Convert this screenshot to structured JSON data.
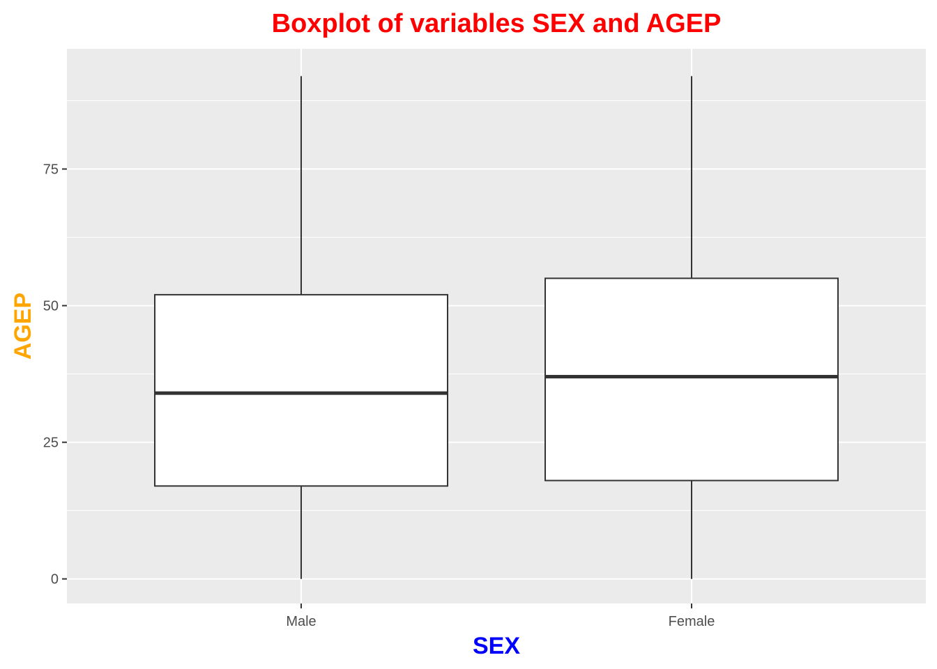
{
  "chart_data": {
    "type": "boxplot",
    "title": "Boxplot of variables SEX and AGEP",
    "xlabel": "SEX",
    "ylabel": "AGEP",
    "categories": [
      "Male",
      "Female"
    ],
    "boxes": [
      {
        "category": "Male",
        "whisker_low": 0,
        "q1": 17,
        "median": 34,
        "q3": 52,
        "whisker_high": 92
      },
      {
        "category": "Female",
        "whisker_low": 0,
        "q1": 18,
        "median": 37,
        "q3": 55,
        "whisker_high": 92
      }
    ],
    "y_ticks": [
      0,
      25,
      50,
      75
    ],
    "ylim": [
      -4.5,
      97
    ],
    "grid": true,
    "legend": "none",
    "colors": {
      "title": "#ff0000",
      "xlabel": "#0000ff",
      "ylabel": "#ffa500",
      "panel_background": "#ebebeb",
      "grid": "#ffffff",
      "box_fill": "#ffffff",
      "box_stroke": "#333333"
    }
  }
}
